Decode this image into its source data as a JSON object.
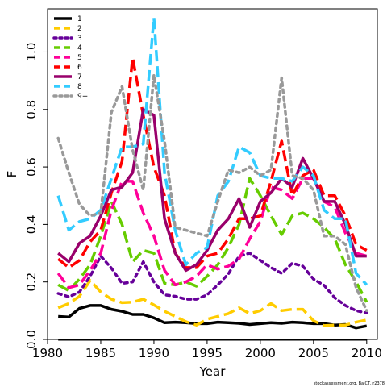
{
  "chart_data": {
    "type": "line",
    "title": "",
    "xlabel": "Year",
    "ylabel": "F",
    "xlim": [
      1980,
      2011
    ],
    "ylim": [
      0,
      1.15
    ],
    "xticks": [
      1980,
      1985,
      1990,
      1995,
      2000,
      2005,
      2010
    ],
    "yticks": [
      0.0,
      0.2,
      0.4,
      0.6,
      0.8,
      1.0
    ],
    "yticklabels": [
      "0.0",
      "0.2",
      "0.4",
      "0.6",
      "0.8",
      "1.0"
    ],
    "legend_position": "top-left",
    "grid": false,
    "credit": "stockassessment.org, BalCT, r2378",
    "x": [
      1981,
      1982,
      1983,
      1984,
      1985,
      1986,
      1987,
      1988,
      1989,
      1990,
      1991,
      1992,
      1993,
      1994,
      1995,
      1996,
      1997,
      1998,
      1999,
      2000,
      2001,
      2002,
      2003,
      2004,
      2005,
      2006,
      2007,
      2008,
      2009,
      2010
    ],
    "series": [
      {
        "name": "1",
        "color": "#000000",
        "dash": "solid",
        "values": [
          0.08,
          0.078,
          0.108,
          0.118,
          0.118,
          0.105,
          0.098,
          0.087,
          0.087,
          0.075,
          0.058,
          0.06,
          0.058,
          0.055,
          0.055,
          0.06,
          0.058,
          0.056,
          0.052,
          0.055,
          0.058,
          0.056,
          0.06,
          0.058,
          0.055,
          0.055,
          0.05,
          0.052,
          0.04,
          0.047
        ]
      },
      {
        "name": "2",
        "color": "#FFCC00",
        "dash": "dash",
        "values": [
          0.11,
          0.125,
          0.15,
          0.205,
          0.165,
          0.14,
          0.128,
          0.13,
          0.14,
          0.12,
          0.098,
          0.08,
          0.062,
          0.05,
          0.07,
          0.08,
          0.09,
          0.11,
          0.09,
          0.1,
          0.125,
          0.1,
          0.105,
          0.105,
          0.065,
          0.048,
          0.05,
          0.05,
          0.06,
          0.068
        ]
      },
      {
        "name": "3",
        "color": "#660099",
        "dash": "dot",
        "values": [
          0.16,
          0.148,
          0.165,
          0.22,
          0.29,
          0.248,
          0.195,
          0.2,
          0.27,
          0.2,
          0.155,
          0.15,
          0.14,
          0.14,
          0.155,
          0.19,
          0.228,
          0.29,
          0.3,
          0.275,
          0.25,
          0.23,
          0.265,
          0.255,
          0.21,
          0.188,
          0.145,
          0.118,
          0.1,
          0.092
        ]
      },
      {
        "name": "4",
        "color": "#66CC00",
        "dash": "dash",
        "values": [
          0.19,
          0.17,
          0.21,
          0.26,
          0.36,
          0.48,
          0.4,
          0.27,
          0.31,
          0.3,
          0.195,
          0.19,
          0.2,
          0.185,
          0.22,
          0.26,
          0.32,
          0.4,
          0.56,
          0.5,
          0.43,
          0.365,
          0.43,
          0.44,
          0.42,
          0.39,
          0.35,
          0.26,
          0.2,
          0.13
        ]
      },
      {
        "name": "5",
        "color": "#FF0099",
        "dash": "dash",
        "values": [
          0.23,
          0.18,
          0.19,
          0.24,
          0.3,
          0.45,
          0.55,
          0.55,
          0.44,
          0.36,
          0.24,
          0.19,
          0.2,
          0.22,
          0.26,
          0.245,
          0.255,
          0.28,
          0.35,
          0.41,
          0.53,
          0.52,
          0.49,
          0.56,
          0.56,
          0.48,
          0.46,
          0.37,
          0.3,
          0.29
        ]
      },
      {
        "name": "6",
        "color": "#FF0000",
        "dash": "dash",
        "values": [
          0.28,
          0.25,
          0.275,
          0.34,
          0.38,
          0.51,
          0.62,
          0.98,
          0.78,
          0.6,
          0.5,
          0.3,
          0.25,
          0.25,
          0.29,
          0.3,
          0.35,
          0.42,
          0.42,
          0.43,
          0.55,
          0.69,
          0.5,
          0.57,
          0.59,
          0.5,
          0.5,
          0.43,
          0.33,
          0.31
        ]
      },
      {
        "name": "7",
        "color": "#99006B",
        "dash": "solid",
        "values": [
          0.3,
          0.27,
          0.335,
          0.36,
          0.43,
          0.52,
          0.53,
          0.58,
          0.8,
          0.78,
          0.42,
          0.3,
          0.24,
          0.26,
          0.31,
          0.38,
          0.42,
          0.49,
          0.39,
          0.48,
          0.51,
          0.56,
          0.53,
          0.63,
          0.56,
          0.48,
          0.48,
          0.4,
          0.29,
          0.29
        ]
      },
      {
        "name": "8",
        "color": "#33CCFF",
        "dash": "dash",
        "values": [
          0.5,
          0.38,
          0.41,
          0.42,
          0.45,
          0.56,
          0.67,
          0.67,
          0.68,
          1.12,
          0.58,
          0.38,
          0.26,
          0.3,
          0.32,
          0.5,
          0.55,
          0.67,
          0.65,
          0.57,
          0.56,
          0.56,
          0.55,
          0.6,
          0.57,
          0.45,
          0.42,
          0.42,
          0.23,
          0.19
        ]
      },
      {
        "name": "9+",
        "color": "#999999",
        "dash": "dot",
        "values": [
          0.7,
          0.58,
          0.47,
          0.43,
          0.44,
          0.79,
          0.88,
          0.66,
          0.52,
          0.92,
          0.69,
          0.39,
          0.38,
          0.37,
          0.36,
          0.48,
          0.59,
          0.58,
          0.6,
          0.57,
          0.59,
          0.91,
          0.57,
          0.56,
          0.52,
          0.36,
          0.36,
          0.33,
          0.18,
          0.1
        ]
      }
    ]
  }
}
